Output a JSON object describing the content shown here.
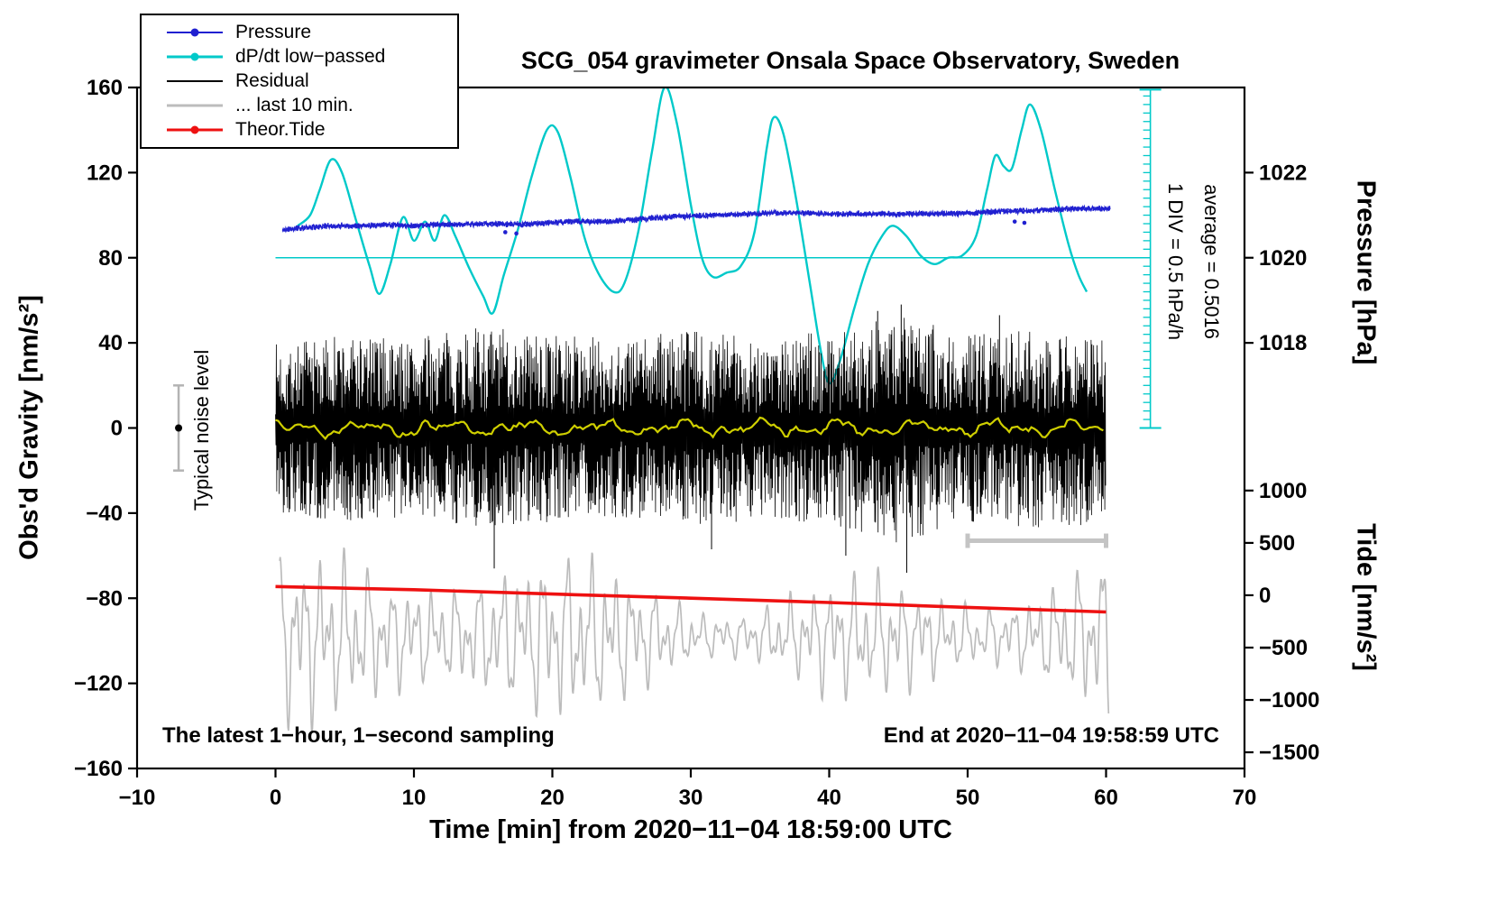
{
  "title": "SCG_054 gravimeter Onsala Space Observatory, Sweden",
  "annotations": {
    "sampling": "The latest 1−hour, 1−second sampling",
    "end_time": "End at 2020−11−04 19:58:59 UTC",
    "div_scale": "1 DIV = 0.5 hPa/h",
    "average": "average = 0.5016",
    "noise_level": "Typical noise level"
  },
  "legend": {
    "items": [
      {
        "label": "Pressure",
        "color": "#2020d0",
        "style": "line-dot",
        "thickness": 2
      },
      {
        "label": "dP/dt low−passed",
        "color": "#00c9c9",
        "style": "line-dot",
        "thickness": 3
      },
      {
        "label": "Residual",
        "color": "#000000",
        "style": "line",
        "thickness": 2
      },
      {
        "label": "... last 10 min.",
        "color": "#bcbcbc",
        "style": "line",
        "thickness": 3
      },
      {
        "label": "Theor.Tide",
        "color": "#ee1111",
        "style": "line-dot",
        "thickness": 3
      }
    ]
  },
  "axes": {
    "x": {
      "label": "Time [min] from 2020−11−04 18:59:00 UTC",
      "min": -10,
      "max": 70,
      "ticks": [
        -10,
        0,
        10,
        20,
        30,
        40,
        50,
        60,
        70
      ]
    },
    "y_left": {
      "label": "Obs'd Gravity [nm/s²]",
      "min": -160,
      "max": 160,
      "ticks": [
        -160,
        -120,
        -80,
        -40,
        0,
        40,
        80,
        120,
        160
      ]
    },
    "y_pressure": {
      "label": "Pressure [hPa]",
      "ticks": [
        1022,
        1020,
        1018
      ],
      "gravity_of_1020": 80,
      "gravity_per_hpa": 20
    },
    "y_tide": {
      "label": "Tide [nm/s²]",
      "ticks": [
        1000,
        500,
        0,
        -500,
        -1000,
        -1500
      ],
      "gravity_at_zero": -78.6,
      "gravity_per_unit": 0.0492
    }
  },
  "chart_data": {
    "type": "line",
    "title": "SCG_054 gravimeter Onsala Space Observatory, Sweden",
    "xlabel": "Time [min] from 2020−11−04 18:59:00 UTC",
    "xlim": [
      -10,
      70
    ],
    "ylim_left": [
      -160,
      160
    ],
    "series_notes": "pressure in hPa (right upper axis); dP/dt plotted in left-axis units, 1 DIV = 0.5 hPa/h; tide in nm/s² (right lower axis); residual and last-10-min bands are 1 Hz noise reproduced from envelope parameters + seed",
    "pressure": {
      "x": [
        0.5,
        2,
        4,
        6,
        8,
        10,
        12,
        14,
        16,
        18,
        20,
        22,
        24,
        26,
        28,
        30,
        32,
        34,
        36,
        38,
        40,
        42,
        44,
        46,
        48,
        50,
        52,
        54,
        56,
        58,
        60.3
      ],
      "hpa": [
        1020.65,
        1020.7,
        1020.75,
        1020.75,
        1020.78,
        1020.75,
        1020.78,
        1020.78,
        1020.8,
        1020.78,
        1020.83,
        1020.85,
        1020.85,
        1020.9,
        1020.95,
        1020.98,
        1021.0,
        1021.03,
        1021.05,
        1021.05,
        1021.03,
        1021.03,
        1021.03,
        1021.03,
        1021.03,
        1021.05,
        1021.08,
        1021.1,
        1021.13,
        1021.15,
        1021.15
      ],
      "jitter_hpa": 0.04,
      "outliers": [
        [
          16.6,
          1020.6
        ],
        [
          17.4,
          1020.57
        ],
        [
          53.4,
          1020.85
        ],
        [
          54.1,
          1020.82
        ]
      ],
      "seed": 11
    },
    "dpdt": {
      "unit": "hPa/h, 1 DIV = 0.5",
      "average": 0.5016,
      "points": [
        [
          1.6,
          95
        ],
        [
          2.5,
          100
        ],
        [
          3.2,
          112
        ],
        [
          4,
          126
        ],
        [
          4.8,
          120
        ],
        [
          5.8,
          98
        ],
        [
          6.8,
          76
        ],
        [
          7.5,
          63
        ],
        [
          8.3,
          77
        ],
        [
          9.2,
          99
        ],
        [
          10,
          88
        ],
        [
          10.8,
          97
        ],
        [
          11.5,
          88
        ],
        [
          12.2,
          100
        ],
        [
          13,
          90
        ],
        [
          14,
          75
        ],
        [
          15,
          62
        ],
        [
          15.7,
          54
        ],
        [
          16.5,
          72
        ],
        [
          17.5,
          93
        ],
        [
          18.5,
          118
        ],
        [
          19.6,
          140
        ],
        [
          20.4,
          139
        ],
        [
          21.3,
          118
        ],
        [
          22.3,
          90
        ],
        [
          23.3,
          73
        ],
        [
          24.4,
          64
        ],
        [
          25.2,
          68
        ],
        [
          26.2,
          92
        ],
        [
          27.2,
          130
        ],
        [
          28.1,
          160
        ],
        [
          29,
          143
        ],
        [
          30,
          105
        ],
        [
          30.8,
          80
        ],
        [
          31.6,
          71
        ],
        [
          32.6,
          73
        ],
        [
          33.6,
          76
        ],
        [
          34.6,
          92
        ],
        [
          35.5,
          132
        ],
        [
          36,
          146
        ],
        [
          36.7,
          138
        ],
        [
          37.6,
          108
        ],
        [
          38.6,
          68
        ],
        [
          39.4,
          36
        ],
        [
          40,
          21
        ],
        [
          40.8,
          32
        ],
        [
          41.8,
          56
        ],
        [
          42.8,
          77
        ],
        [
          43.8,
          90
        ],
        [
          44.6,
          95
        ],
        [
          45.6,
          90
        ],
        [
          46.6,
          81
        ],
        [
          47.6,
          77
        ],
        [
          48.6,
          80
        ],
        [
          49.6,
          81
        ],
        [
          50.6,
          90
        ],
        [
          51.4,
          112
        ],
        [
          52,
          128
        ],
        [
          52.6,
          123
        ],
        [
          53.2,
          122
        ],
        [
          53.9,
          140
        ],
        [
          54.5,
          152
        ],
        [
          55.3,
          140
        ],
        [
          56.3,
          112
        ],
        [
          57.3,
          86
        ],
        [
          58,
          72
        ],
        [
          58.6,
          64
        ]
      ]
    },
    "pressure_ref_line": {
      "hpa": 1020,
      "x_start": 0,
      "x_end": 63.2
    },
    "dpdt_scale_bar": {
      "x": 63.2,
      "g_min": 0,
      "g_max": 159,
      "tick_step": 4
    },
    "residual": {
      "x_env": [
        0,
        5,
        10,
        15,
        20,
        25,
        30,
        35,
        40,
        45,
        50,
        55,
        60
      ],
      "amp_env": [
        40,
        44,
        42,
        48,
        44,
        42,
        46,
        44,
        45,
        54,
        44,
        47,
        45
      ],
      "spikes": [
        [
          15.8,
          -66
        ],
        [
          31.5,
          -57
        ],
        [
          41.2,
          -60
        ],
        [
          45.6,
          -68
        ],
        [
          43.5,
          55
        ],
        [
          45.2,
          58
        ],
        [
          52.3,
          53
        ]
      ],
      "seed": 7
    },
    "residual_smooth": {
      "seed": 13,
      "base": 0,
      "amp": 2.2
    },
    "last10": {
      "center": -98,
      "amp_base": 24,
      "amp_mod1": 10,
      "amp_mod2": 7,
      "seed": 21,
      "clip_high": -47,
      "clip_low": -145
    },
    "last10_bracket": {
      "x_start": 50,
      "x_end": 60,
      "gravity": -53
    },
    "tide": {
      "x": [
        0,
        10,
        20,
        30,
        40,
        50,
        60
      ],
      "values": [
        83,
        53,
        12,
        -28,
        -69,
        -116,
        -160
      ]
    },
    "noise_bar": {
      "x": -7,
      "center": 0,
      "half_span": 20
    }
  },
  "colors": {
    "pressure": "#2020d0",
    "dpdt": "#00c9c9",
    "residual": "#000000",
    "residual_smooth": "#cfcf00",
    "last10": "#bcbcbc",
    "tide": "#ee1111",
    "noise_bar": "#b3b3b3",
    "bracket": "#c4c4c4",
    "frame": "#000000"
  }
}
